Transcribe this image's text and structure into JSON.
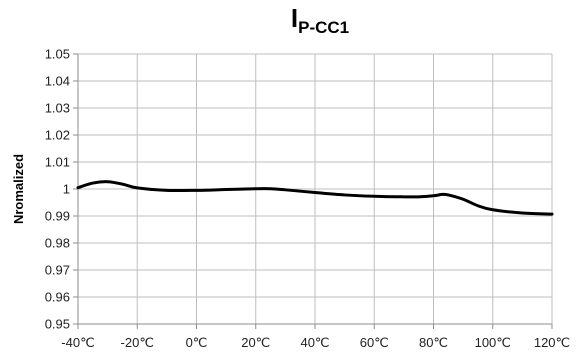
{
  "chart_data": {
    "type": "line",
    "title_main": "I",
    "title_sub": "P-CC1",
    "xlabel": "",
    "ylabel": "Nromalized",
    "x_ticks": [
      -40,
      -20,
      0,
      20,
      40,
      60,
      80,
      100,
      120
    ],
    "x_tick_labels": [
      "-40℃",
      "-20℃",
      "0℃",
      "20℃",
      "40℃",
      "60℃",
      "80℃",
      "100℃",
      "120℃"
    ],
    "y_ticks": [
      0.95,
      0.96,
      0.97,
      0.98,
      0.99,
      1.0,
      1.01,
      1.02,
      1.03,
      1.04,
      1.05
    ],
    "y_tick_labels": [
      "0.95",
      "0.96",
      "0.97",
      "0.98",
      "0.99",
      "1",
      "1.01",
      "1.02",
      "1.03",
      "1.04",
      "1.05"
    ],
    "xlim": [
      -40,
      120
    ],
    "ylim": [
      0.95,
      1.05
    ],
    "grid": true,
    "line_color": "#000000",
    "grid_color": "#bfbfbf",
    "series": [
      {
        "x": [
          -40,
          -35,
          -30,
          -25,
          -20,
          -10,
          0,
          10,
          20,
          25,
          30,
          40,
          50,
          60,
          70,
          75,
          80,
          83,
          85,
          90,
          95,
          100,
          110,
          120
        ],
        "y": [
          1.0005,
          1.0022,
          1.0027,
          1.0018,
          1.0004,
          0.9995,
          0.9995,
          0.9998,
          1.0001,
          1.0001,
          0.9997,
          0.9987,
          0.9978,
          0.9973,
          0.9971,
          0.9971,
          0.9975,
          0.998,
          0.9978,
          0.9962,
          0.9938,
          0.9923,
          0.9911,
          0.9907
        ]
      }
    ]
  }
}
